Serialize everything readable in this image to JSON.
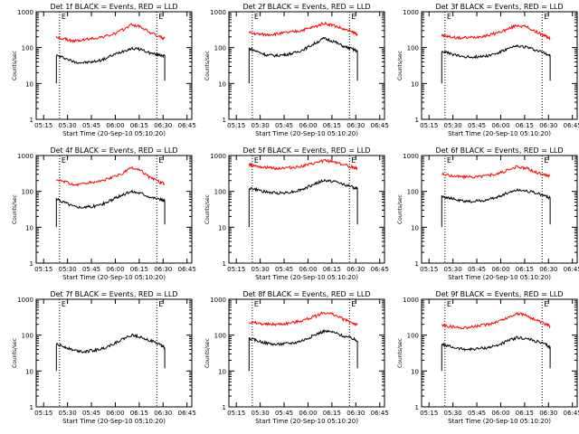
{
  "axes": {
    "ylabel": "Counts/sec",
    "xlabel": "Start Time (20-Sep-10 05:10:20)",
    "y_ticks": [
      "1",
      "10",
      "100",
      "1000"
    ],
    "x_ticks": [
      "05:15",
      "05:30",
      "05:45",
      "06:00",
      "06:15",
      "06:30",
      "06:45"
    ],
    "marker_label": "E",
    "ylim": [
      1,
      1000
    ],
    "yscale": "log",
    "xlim": [
      "05:10:20",
      "06:48"
    ]
  },
  "colors": {
    "events": "#000000",
    "lld": "#ff0000"
  },
  "chart_data": [
    {
      "type": "line",
      "title": "Det 1f BLACK = Events, RED = LLD",
      "x": [
        "05:23",
        "05:28",
        "05:34",
        "05:40",
        "05:46",
        "05:52",
        "05:58",
        "06:04",
        "06:10",
        "06:16",
        "06:22",
        "06:28",
        "06:31"
      ],
      "series": [
        {
          "values": [
            60,
            52,
            40,
            38,
            40,
            46,
            60,
            78,
            95,
            90,
            70,
            62,
            60
          ]
        },
        {
          "values": [
            190,
            175,
            150,
            165,
            180,
            200,
            230,
            300,
            440,
            380,
            260,
            200,
            180
          ]
        }
      ],
      "markers": [
        "05:25",
        "06:26"
      ]
    },
    {
      "type": "line",
      "title": "Det 2f BLACK = Events, RED = LLD",
      "x": [
        "05:23",
        "05:28",
        "05:34",
        "05:40",
        "05:46",
        "05:52",
        "05:58",
        "06:04",
        "06:10",
        "06:16",
        "06:22",
        "06:28",
        "06:31"
      ],
      "series": [
        {
          "values": [
            95,
            78,
            62,
            60,
            64,
            72,
            92,
            130,
            180,
            150,
            110,
            90,
            80
          ]
        },
        {
          "values": [
            260,
            240,
            230,
            240,
            260,
            280,
            320,
            380,
            480,
            420,
            330,
            270,
            240
          ]
        }
      ],
      "markers": [
        "05:25",
        "06:26"
      ]
    },
    {
      "type": "line",
      "title": "Det 3f BLACK = Events, RED = LLD",
      "x": [
        "05:23",
        "05:28",
        "05:34",
        "05:40",
        "05:46",
        "05:52",
        "05:58",
        "06:04",
        "06:10",
        "06:16",
        "06:22",
        "06:28",
        "06:31"
      ],
      "series": [
        {
          "values": [
            80,
            68,
            58,
            55,
            56,
            60,
            70,
            90,
            110,
            105,
            85,
            70,
            60
          ]
        },
        {
          "values": [
            220,
            200,
            185,
            190,
            200,
            220,
            260,
            320,
            420,
            380,
            280,
            210,
            180
          ]
        }
      ],
      "markers": [
        "05:25",
        "06:26"
      ]
    },
    {
      "type": "line",
      "title": "Det 4f BLACK = Events, RED = LLD",
      "x": [
        "05:23",
        "05:28",
        "05:34",
        "05:40",
        "05:46",
        "05:52",
        "05:58",
        "06:04",
        "06:10",
        "06:16",
        "06:22",
        "06:28",
        "06:31"
      ],
      "series": [
        {
          "values": [
            60,
            50,
            38,
            36,
            38,
            44,
            58,
            78,
            100,
            90,
            70,
            60,
            55
          ]
        },
        {
          "values": [
            200,
            190,
            150,
            165,
            180,
            200,
            240,
            310,
            450,
            380,
            240,
            180,
            160
          ]
        }
      ],
      "markers": [
        "05:25",
        "06:26"
      ]
    },
    {
      "type": "line",
      "title": "Det 5f BLACK = Events, RED = LLD",
      "x": [
        "05:23",
        "05:28",
        "05:34",
        "05:40",
        "05:46",
        "05:52",
        "05:58",
        "06:04",
        "06:10",
        "06:16",
        "06:22",
        "06:28",
        "06:31"
      ],
      "series": [
        {
          "values": [
            125,
            110,
            95,
            90,
            92,
            100,
            120,
            160,
            200,
            190,
            160,
            130,
            120
          ]
        },
        {
          "values": [
            560,
            520,
            460,
            440,
            450,
            470,
            520,
            600,
            720,
            680,
            560,
            470,
            440
          ]
        }
      ],
      "markers": [
        "05:25",
        "06:26"
      ]
    },
    {
      "type": "line",
      "title": "Det 6f BLACK = Events, RED = LLD",
      "x": [
        "05:23",
        "05:28",
        "05:34",
        "05:40",
        "05:46",
        "05:52",
        "05:58",
        "06:04",
        "06:10",
        "06:16",
        "06:22",
        "06:28",
        "06:31"
      ],
      "series": [
        {
          "values": [
            75,
            65,
            55,
            52,
            54,
            58,
            70,
            90,
            110,
            105,
            90,
            75,
            65
          ]
        },
        {
          "values": [
            300,
            280,
            260,
            250,
            260,
            280,
            310,
            380,
            480,
            440,
            340,
            290,
            270
          ]
        }
      ],
      "markers": [
        "05:25",
        "06:26"
      ]
    },
    {
      "type": "line",
      "title": "Det 7f BLACK = Events, RED = LLD",
      "x": [
        "05:23",
        "05:28",
        "05:34",
        "05:40",
        "05:46",
        "05:52",
        "05:58",
        "06:04",
        "06:10",
        "06:16",
        "06:22",
        "06:28",
        "06:31"
      ],
      "series": [
        {
          "values": [
            55,
            48,
            38,
            35,
            37,
            42,
            55,
            75,
            100,
            90,
            70,
            55,
            45
          ]
        }
      ],
      "markers": [
        "05:25",
        "06:26"
      ]
    },
    {
      "type": "line",
      "title": "Det 8f BLACK = Events, RED = LLD",
      "x": [
        "05:23",
        "05:28",
        "05:34",
        "05:40",
        "05:46",
        "05:52",
        "05:58",
        "06:04",
        "06:10",
        "06:16",
        "06:22",
        "06:28",
        "06:31"
      ],
      "series": [
        {
          "values": [
            80,
            70,
            60,
            55,
            58,
            62,
            75,
            100,
            130,
            120,
            95,
            80,
            70
          ]
        },
        {
          "values": [
            230,
            215,
            200,
            200,
            210,
            230,
            270,
            330,
            430,
            380,
            280,
            220,
            190
          ]
        }
      ],
      "markers": [
        "05:25",
        "06:26"
      ]
    },
    {
      "type": "line",
      "title": "Det 9f BLACK = Events, RED = LLD",
      "x": [
        "05:23",
        "05:28",
        "05:34",
        "05:40",
        "05:46",
        "05:52",
        "05:58",
        "06:04",
        "06:10",
        "06:16",
        "06:22",
        "06:28",
        "06:31"
      ],
      "series": [
        {
          "values": [
            55,
            48,
            42,
            40,
            42,
            45,
            52,
            68,
            85,
            80,
            68,
            55,
            45
          ]
        },
        {
          "values": [
            190,
            175,
            160,
            165,
            180,
            200,
            240,
            300,
            400,
            360,
            260,
            200,
            180
          ]
        }
      ],
      "markers": [
        "05:25",
        "06:26"
      ]
    }
  ]
}
